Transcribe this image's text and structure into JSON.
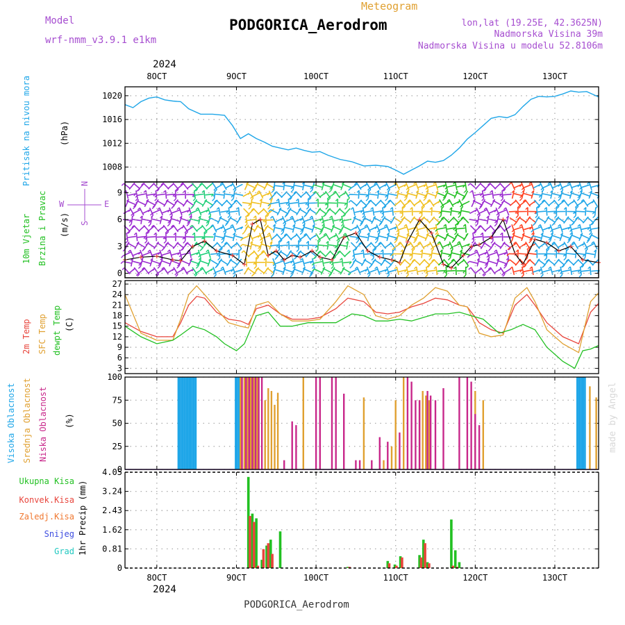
{
  "header": {
    "model_label": "Model",
    "model_name": "wrf-nmm_v3.9.1 e1km",
    "meteogram_label": "Meteogram",
    "station": "PODGORICA_Aerodrom",
    "lonlat": "lon,lat (19.25E, 42.3625N)",
    "elevation": "Nadmorska Visina 39m",
    "model_elevation": "Nadmorska Visina u modelu 52.8106m",
    "year": "2024",
    "footer_station": "PODGORICA_Aerodrom",
    "credit": "made by Angel"
  },
  "colors": {
    "pressure": "#1fa6e8",
    "temp2m": "#e8453c",
    "sfc": "#e0a030",
    "dewpt": "#22c022",
    "cloud_high": "#1fa6e8",
    "cloud_mid": "#e0a030",
    "cloud_low": "#c8278a",
    "precip_total": "#22c022",
    "precip_conv": "#e8453c",
    "precip_frozen": "#f07830",
    "precip_snow": "#3c4ce0",
    "precip_hail": "#20c8c0",
    "label_purple": "#a64ed0",
    "wind_speed": "#000000"
  },
  "chart_data": [
    {
      "type": "line",
      "panel": "pressure",
      "ylabel": [
        "Pritisak na nivou mora",
        "(hPa)"
      ],
      "x": [
        "8OCT",
        "9OCT",
        "10OCT",
        "11OCT",
        "12OCT",
        "13OCT"
      ],
      "xlim": [
        -0.4,
        5.55
      ],
      "ylim": [
        1005.5,
        1021.5
      ],
      "yticks": [
        1008,
        1012,
        1016,
        1020
      ],
      "grid": true,
      "series": [
        {
          "x": [
            -0.4,
            -0.3,
            -0.2,
            -0.1,
            0.0,
            0.1,
            0.2,
            0.3,
            0.4,
            0.55,
            0.7,
            0.85,
            0.95,
            1.05,
            1.15,
            1.25,
            1.35,
            1.45,
            1.55,
            1.65,
            1.75,
            1.85,
            1.95,
            2.05,
            2.15,
            2.3,
            2.45,
            2.6,
            2.75,
            2.9,
            3.0,
            3.1,
            3.2,
            3.3,
            3.4,
            3.5,
            3.6,
            3.7,
            3.8,
            3.9,
            4.0,
            4.1,
            4.2,
            4.3,
            4.4,
            4.5,
            4.6,
            4.7,
            4.8,
            4.9,
            5.0,
            5.1,
            5.2,
            5.3,
            5.4,
            5.55
          ],
          "y": [
            1018.5,
            1018.0,
            1019.0,
            1019.6,
            1019.8,
            1019.3,
            1019.1,
            1019.0,
            1017.8,
            1016.9,
            1016.9,
            1016.7,
            1015.0,
            1012.8,
            1013.6,
            1012.8,
            1012.2,
            1011.5,
            1011.2,
            1010.9,
            1011.2,
            1010.8,
            1010.5,
            1010.6,
            1010.0,
            1009.3,
            1008.9,
            1008.2,
            1008.3,
            1008.1,
            1007.5,
            1006.8,
            1007.5,
            1008.2,
            1009.0,
            1008.8,
            1009.1,
            1010.0,
            1011.2,
            1012.7,
            1013.8,
            1015.0,
            1016.2,
            1016.5,
            1016.3,
            1016.8,
            1018.2,
            1019.4,
            1019.9,
            1019.8,
            1019.9,
            1020.3,
            1020.8,
            1020.6,
            1020.7,
            1019.8
          ]
        }
      ]
    },
    {
      "type": "line",
      "panel": "wind",
      "ylabel": [
        "10m Vjetar",
        "Brzina i Pravac",
        "(m/s)"
      ],
      "compass": [
        "N",
        "W",
        "E",
        "S"
      ],
      "x": [
        "8OCT",
        "9OCT",
        "10OCT",
        "11OCT",
        "12OCT",
        "13OCT"
      ],
      "xlim": [
        -0.4,
        5.55
      ],
      "ylim": [
        -0.5,
        10.2
      ],
      "yticks": [
        0,
        3,
        6,
        9
      ],
      "grid": true,
      "series": [
        {
          "name": "speed",
          "x": [
            -0.4,
            -0.2,
            0.0,
            0.2,
            0.3,
            0.45,
            0.6,
            0.75,
            0.95,
            1.1,
            1.2,
            1.3,
            1.4,
            1.5,
            1.6,
            1.7,
            1.8,
            1.95,
            2.05,
            2.2,
            2.35,
            2.5,
            2.65,
            2.8,
            2.95,
            3.05,
            3.15,
            3.3,
            3.45,
            3.6,
            3.7,
            3.85,
            3.95,
            4.05,
            4.2,
            4.35,
            4.5,
            4.6,
            4.75,
            4.9,
            5.05,
            5.2,
            5.35,
            5.55
          ],
          "y": [
            1.5,
            1.8,
            1.9,
            1.5,
            1.4,
            3.0,
            3.6,
            2.5,
            2.0,
            1.0,
            5.5,
            6.0,
            2.0,
            2.5,
            1.5,
            2.0,
            1.8,
            2.5,
            1.8,
            1.5,
            4.0,
            4.5,
            2.5,
            1.8,
            1.5,
            1.2,
            3.5,
            6.0,
            4.5,
            1.0,
            0.6,
            2.0,
            3.0,
            3.2,
            4.0,
            6.0,
            2.2,
            1.0,
            3.8,
            3.4,
            2.5,
            3.0,
            1.5,
            1.2
          ]
        }
      ],
      "direction_color_bands": [
        {
          "from": -0.4,
          "to": 0.45,
          "color": "#9a2ad0"
        },
        {
          "from": 0.45,
          "to": 0.7,
          "color": "#1fcf7a"
        },
        {
          "from": 0.7,
          "to": 1.1,
          "color": "#1fa6e8"
        },
        {
          "from": 1.1,
          "to": 1.45,
          "color": "#f0c020"
        },
        {
          "from": 1.45,
          "to": 2.0,
          "color": "#1fa6e8"
        },
        {
          "from": 2.0,
          "to": 2.45,
          "color": "#2ad060"
        },
        {
          "from": 2.45,
          "to": 3.0,
          "color": "#1fa6e8"
        },
        {
          "from": 3.0,
          "to": 3.55,
          "color": "#f0c020"
        },
        {
          "from": 3.55,
          "to": 3.95,
          "color": "#22c022"
        },
        {
          "from": 3.95,
          "to": 4.45,
          "color": "#9a2ad0"
        },
        {
          "from": 4.45,
          "to": 4.75,
          "color": "#ff4020"
        },
        {
          "from": 4.75,
          "to": 5.55,
          "color": "#1fa6e8"
        }
      ]
    },
    {
      "type": "line",
      "panel": "temperature",
      "ylabel": [
        "2m Temp",
        "SFC Temp",
        "dewpt Temp",
        "(C)"
      ],
      "x": [
        "8OCT",
        "9OCT",
        "10OCT",
        "11OCT",
        "12OCT",
        "13OCT"
      ],
      "xlim": [
        -0.4,
        5.55
      ],
      "ylim": [
        1.5,
        28
      ],
      "yticks": [
        3,
        6,
        9,
        12,
        15,
        18,
        21,
        24,
        27
      ],
      "grid": true,
      "series": [
        {
          "name": "2m Temp",
          "x": [
            -0.4,
            -0.2,
            0.0,
            0.2,
            0.3,
            0.4,
            0.5,
            0.6,
            0.75,
            0.9,
            1.05,
            1.15,
            1.25,
            1.4,
            1.55,
            1.7,
            1.9,
            2.05,
            2.25,
            2.4,
            2.6,
            2.75,
            2.9,
            3.05,
            3.2,
            3.35,
            3.5,
            3.65,
            3.8,
            3.9,
            4.05,
            4.2,
            4.35,
            4.5,
            4.65,
            4.75,
            4.9,
            5.1,
            5.3,
            5.45,
            5.55
          ],
          "y": [
            16,
            13.5,
            12,
            12,
            16,
            21,
            23.5,
            23,
            19,
            17,
            16.5,
            15.5,
            20,
            21,
            18.5,
            17,
            17,
            17.5,
            20,
            23,
            22,
            19,
            18.5,
            19,
            20.5,
            21.5,
            23,
            22.5,
            21,
            20.5,
            16,
            14,
            13,
            21,
            24,
            21,
            16,
            12,
            10,
            19,
            21.5
          ]
        },
        {
          "name": "SFC Temp",
          "x": [
            -0.4,
            -0.2,
            0.0,
            0.2,
            0.3,
            0.4,
            0.5,
            0.6,
            0.75,
            0.9,
            1.05,
            1.15,
            1.25,
            1.4,
            1.55,
            1.7,
            1.9,
            2.05,
            2.25,
            2.4,
            2.6,
            2.75,
            2.9,
            3.05,
            3.2,
            3.35,
            3.5,
            3.65,
            3.8,
            3.9,
            4.05,
            4.2,
            4.35,
            4.5,
            4.65,
            4.75,
            4.9,
            5.1,
            5.3,
            5.45,
            5.55
          ],
          "y": [
            24,
            13,
            11,
            11,
            17,
            24,
            26.5,
            24,
            20,
            16,
            15,
            14.5,
            21,
            22,
            18.5,
            16.5,
            16.5,
            17,
            22,
            26.5,
            24,
            18,
            17,
            18,
            21,
            23,
            26,
            25,
            21,
            20.5,
            13,
            12,
            12.5,
            23,
            26,
            22,
            14,
            10,
            7.5,
            22,
            24.5
          ]
        },
        {
          "name": "dewpt Temp",
          "x": [
            -0.4,
            -0.2,
            0.0,
            0.2,
            0.3,
            0.45,
            0.6,
            0.75,
            0.85,
            1.0,
            1.1,
            1.25,
            1.4,
            1.55,
            1.7,
            1.9,
            2.05,
            2.25,
            2.45,
            2.6,
            2.75,
            2.9,
            3.05,
            3.2,
            3.35,
            3.5,
            3.65,
            3.8,
            3.95,
            4.1,
            4.2,
            4.3,
            4.45,
            4.6,
            4.75,
            4.9,
            5.0,
            5.1,
            5.25,
            5.35,
            5.45,
            5.55
          ],
          "y": [
            15,
            12,
            10,
            11,
            12.5,
            15,
            14,
            12,
            10,
            8,
            10,
            18,
            19,
            15,
            15,
            16,
            16,
            16,
            18.5,
            18,
            16.5,
            16.5,
            17,
            16.5,
            17.5,
            18.5,
            18.5,
            19,
            18,
            17,
            15,
            13,
            14,
            15.5,
            14,
            9,
            7,
            5,
            3,
            8,
            8.5,
            9.5
          ]
        }
      ]
    },
    {
      "type": "bar",
      "panel": "cloud",
      "ylabel": [
        "Visoka Oblacnost",
        "Srednja Oblacnost",
        "Niska Oblacnost",
        "(%)"
      ],
      "x": [
        "8OCT",
        "9OCT",
        "10OCT",
        "11OCT",
        "12OCT",
        "13OCT"
      ],
      "xlim": [
        -0.4,
        5.55
      ],
      "ylim": [
        0,
        100
      ],
      "yticks": [
        0,
        25,
        50,
        75,
        100
      ],
      "grid": true,
      "series": [
        {
          "name": "Visoka Oblacnost",
          "x": [
            0.27,
            0.29,
            0.31,
            0.33,
            0.35,
            0.37,
            0.39,
            0.41,
            0.43,
            0.45,
            0.47,
            0.49,
            0.99,
            1.01,
            1.03,
            5.28,
            5.3,
            5.32,
            5.34,
            5.36,
            5.38
          ],
          "y": [
            100,
            100,
            100,
            100,
            100,
            100,
            100,
            100,
            100,
            100,
            100,
            100,
            100,
            100,
            100,
            100,
            100,
            100,
            100,
            100,
            100
          ]
        },
        {
          "name": "Srednja Oblacnost",
          "x": [
            1.05,
            1.1,
            1.14,
            1.18,
            1.22,
            1.26,
            1.36,
            1.4,
            1.44,
            1.48,
            1.52,
            1.84,
            2.6,
            2.85,
            2.9,
            2.95,
            3.0,
            3.1,
            3.3,
            3.34,
            3.38,
            3.42,
            4.0,
            4.1,
            5.44,
            5.52
          ],
          "y": [
            100,
            100,
            100,
            100,
            100,
            100,
            75,
            88,
            85,
            70,
            83,
            100,
            78,
            10,
            10,
            25,
            75,
            100,
            75,
            85,
            80,
            75,
            85,
            75,
            90,
            78
          ]
        },
        {
          "name": "Niska Oblacnost",
          "x": [
            1.07,
            1.12,
            1.16,
            1.2,
            1.24,
            1.28,
            1.32,
            1.6,
            1.7,
            1.75,
            2.0,
            2.05,
            2.2,
            2.25,
            2.35,
            2.5,
            2.55,
            2.7,
            2.8,
            2.9,
            3.05,
            3.15,
            3.2,
            3.25,
            3.3,
            3.4,
            3.44,
            3.5,
            3.6,
            3.8,
            3.9,
            3.95,
            4.0,
            4.05
          ],
          "y": [
            100,
            100,
            100,
            100,
            100,
            100,
            100,
            10,
            52,
            48,
            100,
            100,
            100,
            100,
            82,
            10,
            10,
            10,
            35,
            30,
            40,
            100,
            95,
            75,
            75,
            85,
            80,
            75,
            88,
            100,
            100,
            95,
            60,
            48
          ]
        }
      ]
    },
    {
      "type": "bar",
      "panel": "precip",
      "ylabel": [
        "1hr Precip (mm)"
      ],
      "legend": [
        "Ukupna Kisa",
        "Konvek.Kisa",
        "Zaledj.Kisa",
        "Snijeg",
        "Grad"
      ],
      "x": [
        "8OCT",
        "9OCT",
        "10OCT",
        "11OCT",
        "12OCT",
        "13OCT"
      ],
      "xlim": [
        -0.4,
        5.55
      ],
      "ylim": [
        0,
        4.05
      ],
      "yticks": [
        0,
        0.81,
        1.62,
        2.43,
        3.24,
        4.05
      ],
      "grid": true,
      "series": [
        {
          "name": "Ukupna Kisa",
          "x": [
            1.15,
            1.2,
            1.25,
            1.32,
            1.38,
            1.43,
            1.55,
            2.4,
            2.9,
            2.99,
            3.06,
            3.3,
            3.35,
            3.4,
            3.7,
            3.75,
            3.8
          ],
          "y": [
            3.85,
            2.3,
            2.1,
            0.35,
            0.95,
            1.2,
            1.55,
            0.05,
            0.3,
            0.15,
            0.5,
            0.55,
            1.2,
            0.25,
            2.05,
            0.75,
            0.25
          ]
        },
        {
          "name": "Konvek.Kisa",
          "x": [
            1.17,
            1.22,
            1.27,
            1.34,
            1.4,
            1.45,
            2.42,
            2.92,
            3.01,
            3.08,
            3.32,
            3.37,
            3.42,
            3.72,
            3.77
          ],
          "y": [
            2.2,
            1.95,
            0.1,
            0.8,
            1.05,
            0.6,
            0.05,
            0.2,
            0.1,
            0.45,
            0.45,
            1.05,
            0.2,
            0.1,
            0.05
          ]
        }
      ]
    }
  ]
}
